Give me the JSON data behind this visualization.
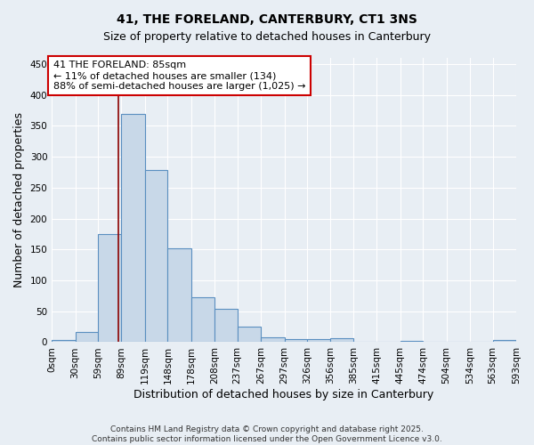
{
  "title_line1": "41, THE FORELAND, CANTERBURY, CT1 3NS",
  "title_line2": "Size of property relative to detached houses in Canterbury",
  "xlabel": "Distribution of detached houses by size in Canterbury",
  "ylabel": "Number of detached properties",
  "bin_edges": [
    0,
    30,
    59,
    89,
    119,
    148,
    178,
    208,
    237,
    267,
    297,
    326,
    356,
    385,
    415,
    445,
    474,
    504,
    534,
    563,
    593
  ],
  "tick_labels": [
    "0sqm",
    "30sqm",
    "59sqm",
    "89sqm",
    "119sqm",
    "148sqm",
    "178sqm",
    "208sqm",
    "237sqm",
    "267sqm",
    "297sqm",
    "326sqm",
    "356sqm",
    "385sqm",
    "415sqm",
    "445sqm",
    "474sqm",
    "504sqm",
    "534sqm",
    "563sqm",
    "593sqm"
  ],
  "bar_heights": [
    3,
    17,
    175,
    370,
    278,
    152,
    72,
    54,
    25,
    8,
    5,
    5,
    6,
    0,
    0,
    2,
    0,
    0,
    0,
    3
  ],
  "bar_color": "#c8d8e8",
  "bar_edge_color": "#5a8fc0",
  "property_size": 85,
  "vline_color": "#8b0000",
  "annotation_text": "41 THE FORELAND: 85sqm\n← 11% of detached houses are smaller (134)\n88% of semi-detached houses are larger (1,025) →",
  "annotation_box_facecolor": "#ffffff",
  "annotation_box_edgecolor": "#cc0000",
  "ylim": [
    0,
    460
  ],
  "yticks": [
    0,
    50,
    100,
    150,
    200,
    250,
    300,
    350,
    400,
    450
  ],
  "bg_color": "#e8eef4",
  "grid_color": "#ffffff",
  "footer_line1": "Contains HM Land Registry data © Crown copyright and database right 2025.",
  "footer_line2": "Contains public sector information licensed under the Open Government Licence v3.0.",
  "title_fontsize": 10,
  "subtitle_fontsize": 9,
  "axis_label_fontsize": 9,
  "tick_label_fontsize": 7.5,
  "annotation_fontsize": 8,
  "footer_fontsize": 6.5
}
